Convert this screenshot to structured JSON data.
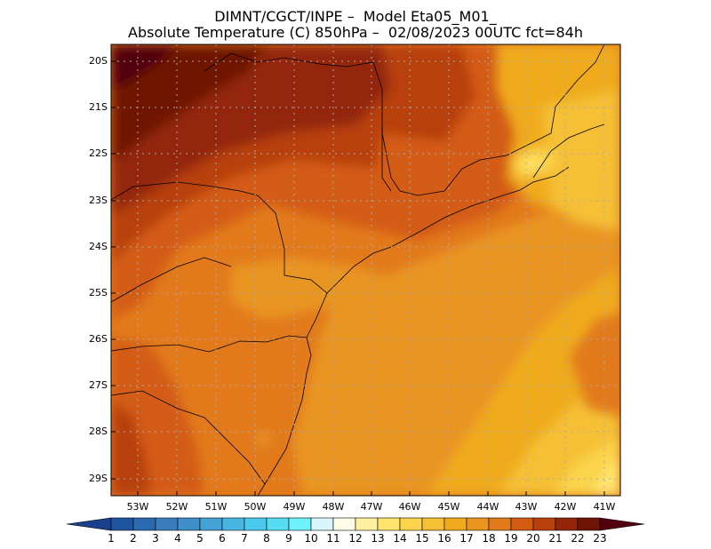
{
  "title": {
    "line1": "DIMNT/CGCT/INPE –  Model Eta05_M01_",
    "line2": "Absolute Temperature (C) 850hPa –  02/08/2023 00UTC fct=84h"
  },
  "map": {
    "lat_labels": [
      "20S",
      "21S",
      "22S",
      "23S",
      "24S",
      "25S",
      "26S",
      "27S",
      "28S",
      "29S"
    ],
    "lon_labels": [
      "53W",
      "52W",
      "51W",
      "50W",
      "49W",
      "48W",
      "47W",
      "46W",
      "45W",
      "44W",
      "43W",
      "42W",
      "41W"
    ]
  },
  "colorbar": {
    "labels": [
      "1",
      "2",
      "3",
      "4",
      "5",
      "6",
      "7",
      "8",
      "9",
      "10",
      "11",
      "12",
      "13",
      "14",
      "15",
      "16",
      "17",
      "18",
      "19",
      "20",
      "21",
      "22",
      "23"
    ],
    "colors": [
      "#1a3f8f",
      "#1f559f",
      "#2a6aaf",
      "#3a7dbd",
      "#3f8fca",
      "#44a2d6",
      "#48b6e2",
      "#4ccaed",
      "#55def3",
      "#6ff2fb",
      "#d8f6fb",
      "#fffbe6",
      "#fff0a0",
      "#ffe56e",
      "#fbd44c",
      "#f5c035",
      "#f0ab1c",
      "#e99520",
      "#e27a1c",
      "#d35c12",
      "#b8400c",
      "#932608",
      "#6f1505",
      "#520010"
    ]
  }
}
